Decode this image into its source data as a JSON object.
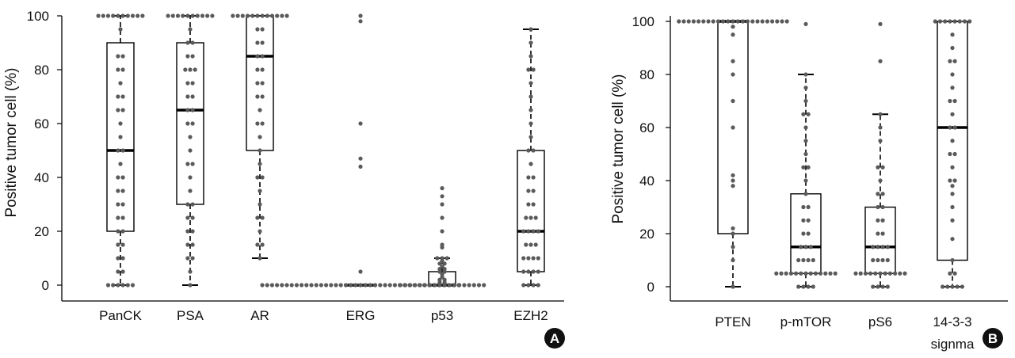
{
  "chart_data": [
    {
      "panel": "A",
      "type": "box",
      "ylabel": "Positive tumor cell (%)",
      "ylim": [
        -5,
        100
      ],
      "yticks": [
        0,
        20,
        40,
        60,
        80,
        100
      ],
      "categories": [
        "PanCK",
        "PSA",
        "AR",
        "ERG",
        "p53",
        "EZH2"
      ],
      "boxes": [
        {
          "name": "PanCK",
          "min": 0,
          "q1": 20,
          "median": 50,
          "q3": 90,
          "max": 100,
          "outliers": [],
          "points": [
            100,
            100,
            100,
            100,
            100,
            100,
            100,
            100,
            100,
            100,
            95,
            85,
            85,
            80,
            80,
            75,
            70,
            70,
            65,
            65,
            60,
            55,
            50,
            50,
            45,
            40,
            40,
            35,
            35,
            30,
            30,
            25,
            25,
            20,
            20,
            15,
            15,
            10,
            10,
            5,
            5,
            0,
            0,
            0,
            0,
            0,
            0
          ]
        },
        {
          "name": "PSA",
          "min": 0,
          "q1": 30,
          "median": 65,
          "q3": 90,
          "max": 100,
          "outliers": [],
          "points": [
            100,
            100,
            100,
            100,
            100,
            100,
            100,
            100,
            100,
            100,
            95,
            90,
            90,
            85,
            85,
            80,
            80,
            80,
            75,
            75,
            70,
            70,
            65,
            65,
            60,
            60,
            55,
            50,
            45,
            45,
            40,
            35,
            30,
            30,
            25,
            25,
            20,
            20,
            15,
            15,
            10,
            10,
            5,
            0
          ]
        },
        {
          "name": "AR",
          "min": 10,
          "q1": 50,
          "median": 85,
          "q3": 100,
          "max": 100,
          "outliers": [],
          "points": [
            100,
            100,
            100,
            100,
            100,
            100,
            100,
            100,
            100,
            100,
            100,
            100,
            95,
            95,
            90,
            90,
            85,
            85,
            80,
            80,
            75,
            75,
            70,
            70,
            65,
            60,
            60,
            55,
            50,
            45,
            40,
            40,
            35,
            30,
            25,
            25,
            20,
            15,
            15,
            10
          ]
        },
        {
          "name": "ERG",
          "min": 0,
          "q1": 0,
          "median": 0,
          "q3": 0,
          "max": 0,
          "outliers": [
            100,
            98,
            60,
            47,
            44,
            5
          ],
          "points": [
            0,
            0,
            0,
            0,
            0,
            0,
            0,
            0,
            0,
            0,
            0,
            0,
            0,
            0,
            0,
            0,
            0,
            0,
            0,
            0,
            0,
            0,
            0,
            0,
            0,
            0,
            0,
            0,
            0,
            0,
            0,
            0,
            0,
            0,
            0,
            0,
            0,
            0,
            0,
            0,
            0
          ]
        },
        {
          "name": "p53",
          "min": 0,
          "q1": 0,
          "median": 0,
          "q3": 5,
          "max": 10,
          "outliers": [
            36,
            33,
            30,
            25,
            20,
            15,
            14
          ],
          "points": [
            10,
            10,
            10,
            9,
            8,
            8,
            7,
            6,
            6,
            5,
            5,
            4,
            3,
            2,
            2,
            1,
            1,
            0,
            0,
            0,
            0,
            0,
            0,
            0,
            0,
            0,
            0,
            0,
            0,
            0,
            0,
            0,
            0,
            0,
            0
          ]
        },
        {
          "name": "EZH2",
          "min": 0,
          "q1": 5,
          "median": 20,
          "q3": 50,
          "max": 95,
          "outliers": [],
          "points": [
            95,
            90,
            85,
            80,
            80,
            75,
            70,
            65,
            60,
            55,
            50,
            50,
            45,
            40,
            40,
            35,
            35,
            30,
            30,
            25,
            25,
            25,
            20,
            20,
            20,
            20,
            15,
            15,
            15,
            10,
            10,
            10,
            10,
            5,
            5,
            5,
            5,
            0,
            0,
            0,
            0
          ]
        }
      ]
    },
    {
      "panel": "B",
      "type": "box",
      "ylabel": "Positive tumor cell (%)",
      "ylim": [
        -5,
        100
      ],
      "yticks": [
        0,
        20,
        40,
        60,
        80,
        100
      ],
      "categories": [
        "PTEN",
        "p-mTOR",
        "pS6",
        "14-3-3 signma"
      ],
      "boxes": [
        {
          "name": "PTEN",
          "min": 0,
          "q1": 20,
          "median": 100,
          "q3": 100,
          "max": 100,
          "outliers": [],
          "points": [
            100,
            100,
            100,
            100,
            100,
            100,
            100,
            100,
            100,
            100,
            100,
            100,
            100,
            100,
            100,
            100,
            100,
            100,
            100,
            100,
            100,
            100,
            100,
            98,
            95,
            85,
            80,
            70,
            60,
            42,
            40,
            38,
            22,
            20,
            15,
            10,
            0
          ]
        },
        {
          "name": "p-mTOR",
          "min": 0,
          "q1": 5,
          "median": 15,
          "q3": 35,
          "max": 80,
          "outliers": [
            99
          ],
          "points": [
            80,
            75,
            70,
            65,
            65,
            60,
            55,
            50,
            45,
            45,
            40,
            35,
            30,
            30,
            25,
            25,
            20,
            20,
            15,
            15,
            15,
            10,
            10,
            10,
            10,
            5,
            5,
            5,
            5,
            5,
            5,
            5,
            5,
            5,
            5,
            5,
            5,
            5,
            0,
            0,
            0,
            0
          ]
        },
        {
          "name": "pS6",
          "min": 0,
          "q1": 5,
          "median": 15,
          "q3": 30,
          "max": 65,
          "outliers": [
            99,
            85
          ],
          "points": [
            65,
            60,
            55,
            45,
            45,
            40,
            35,
            35,
            30,
            30,
            25,
            25,
            20,
            20,
            15,
            15,
            15,
            15,
            10,
            10,
            10,
            10,
            5,
            5,
            5,
            5,
            5,
            5,
            5,
            5,
            5,
            5,
            5,
            0,
            0,
            0,
            0
          ]
        },
        {
          "name": "14-3-3 signma",
          "min": 0,
          "q1": 10,
          "median": 60,
          "q3": 100,
          "max": 100,
          "outliers": [],
          "points": [
            100,
            100,
            100,
            100,
            100,
            100,
            100,
            100,
            95,
            90,
            85,
            85,
            80,
            75,
            70,
            70,
            65,
            60,
            60,
            55,
            50,
            50,
            45,
            40,
            40,
            38,
            35,
            30,
            25,
            18,
            10,
            5,
            5,
            0,
            0,
            0,
            0,
            0
          ]
        }
      ]
    }
  ],
  "badges": {
    "a": "A",
    "b": "B"
  },
  "colors": {
    "dot": "#5a5a5a",
    "box": "#000000",
    "badge": "#111111",
    "axis": "#000000"
  }
}
